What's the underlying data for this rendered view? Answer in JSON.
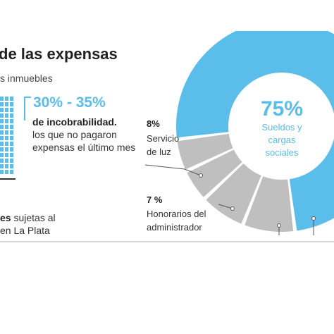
{
  "header": {
    "title": "de las expensas",
    "subtitle": "s inmuebles"
  },
  "delinquency": {
    "range": "30% - 35%",
    "label": "de incobrabilidad.",
    "description": "los que no pagaron expensas el último mes"
  },
  "subject": {
    "bold": "es",
    "rest_line1": " sujetas al",
    "line2": "en La Plata"
  },
  "chart_data": {
    "type": "pie",
    "style": "donut",
    "slices": [
      {
        "label": "Sueldos y cargas sociales",
        "value": 75,
        "display": "75%",
        "color": "#5bbde9"
      },
      {
        "label": "Servicio de luz",
        "value": 8,
        "display": "8%",
        "color": "#bfbfbf"
      },
      {
        "label": "Honorarios del administrador",
        "value": 7,
        "display": "7 %",
        "color": "#bfbfbf"
      },
      {
        "value": 5,
        "color": "#bfbfbf"
      },
      {
        "value": 5,
        "color": "#bfbfbf"
      }
    ],
    "center_label": {
      "value": "75%",
      "text": "Sueldos y cargas sociales"
    },
    "callouts": [
      {
        "pct": "8%",
        "text_line1": "Servicio",
        "text_line2": "de luz"
      },
      {
        "pct": "7 %",
        "text_line1": "Honorarios del",
        "text_line2": "administrador"
      }
    ],
    "colors": {
      "main": "#5bbde9",
      "other": "#bfbfbf"
    }
  }
}
